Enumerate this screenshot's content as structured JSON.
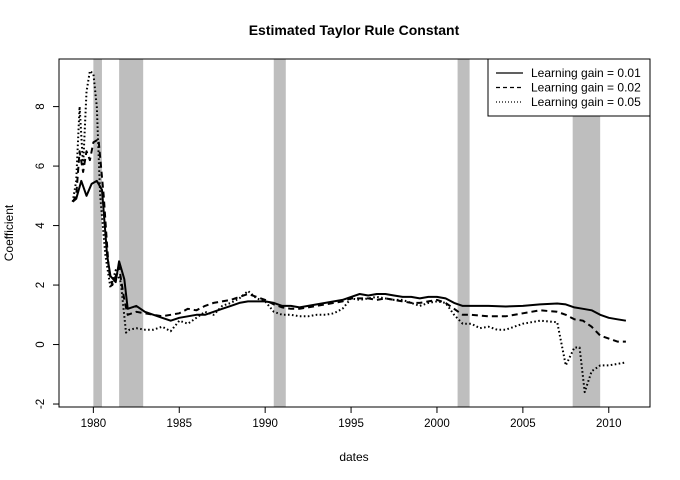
{
  "chart_data": {
    "type": "line",
    "title": "Estimated Taylor Rule Constant",
    "xlabel": "dates",
    "ylabel": "Coefficient",
    "xlim": [
      1978,
      2012.4
    ],
    "ylim": [
      -2.1,
      9.6
    ],
    "x_ticks": [
      1980,
      1985,
      1990,
      1995,
      2000,
      2005,
      2010
    ],
    "y_ticks": [
      -2,
      0,
      2,
      4,
      6,
      8
    ],
    "grid": false,
    "legend_position": "top-right",
    "shaded_periods": [
      [
        1980.0,
        1980.5
      ],
      [
        1981.5,
        1982.9
      ],
      [
        1990.5,
        1991.2
      ],
      [
        2001.2,
        2001.9
      ],
      [
        2007.9,
        2009.5
      ]
    ],
    "series": [
      {
        "name": "Learning gain = 0.01",
        "line_style": "solid",
        "x": [
          1978.8,
          1979.0,
          1979.3,
          1979.6,
          1979.9,
          1980.2,
          1980.5,
          1980.8,
          1981.0,
          1981.3,
          1981.5,
          1981.8,
          1982.0,
          1982.5,
          1983.0,
          1983.5,
          1984.0,
          1984.5,
          1985.0,
          1985.5,
          1986.0,
          1986.5,
          1987.0,
          1987.5,
          1988.0,
          1988.5,
          1989.0,
          1989.5,
          1990.0,
          1990.5,
          1991.0,
          1991.5,
          1992.0,
          1992.5,
          1993.0,
          1993.5,
          1994.0,
          1994.5,
          1995.0,
          1995.5,
          1996.0,
          1996.5,
          1997.0,
          1997.5,
          1998.0,
          1998.5,
          1999.0,
          1999.5,
          2000.0,
          2000.5,
          2001.0,
          2001.5,
          2002.0,
          2003.0,
          2004.0,
          2005.0,
          2006.0,
          2007.0,
          2007.5,
          2008.0,
          2008.5,
          2009.0,
          2009.5,
          2010.0,
          2010.5,
          2011.0
        ],
        "y": [
          4.8,
          4.9,
          5.5,
          5.0,
          5.4,
          5.5,
          5.2,
          3.0,
          2.3,
          2.1,
          2.8,
          2.2,
          1.2,
          1.3,
          1.1,
          1.0,
          0.9,
          0.8,
          0.9,
          0.95,
          1.0,
          1.0,
          1.1,
          1.2,
          1.3,
          1.4,
          1.45,
          1.45,
          1.45,
          1.4,
          1.3,
          1.3,
          1.25,
          1.3,
          1.35,
          1.4,
          1.45,
          1.5,
          1.6,
          1.7,
          1.65,
          1.7,
          1.7,
          1.65,
          1.6,
          1.6,
          1.55,
          1.6,
          1.6,
          1.55,
          1.4,
          1.3,
          1.3,
          1.3,
          1.28,
          1.3,
          1.35,
          1.38,
          1.35,
          1.25,
          1.2,
          1.15,
          1.0,
          0.9,
          0.85,
          0.8
        ]
      },
      {
        "name": "Learning gain = 0.02",
        "line_style": "dashed",
        "x": [
          1978.8,
          1979.0,
          1979.2,
          1979.4,
          1979.6,
          1979.8,
          1980.0,
          1980.3,
          1980.6,
          1980.9,
          1981.1,
          1981.3,
          1981.5,
          1981.8,
          1982.0,
          1982.5,
          1983.0,
          1983.5,
          1984.0,
          1984.5,
          1985.0,
          1985.5,
          1986.0,
          1986.5,
          1987.0,
          1987.5,
          1988.0,
          1988.5,
          1989.0,
          1989.5,
          1990.0,
          1990.5,
          1991.0,
          1991.5,
          1992.0,
          1992.5,
          1993.0,
          1993.5,
          1994.0,
          1994.5,
          1995.0,
          1995.5,
          1996.0,
          1996.5,
          1997.0,
          1997.5,
          1998.0,
          1998.5,
          1999.0,
          1999.5,
          2000.0,
          2000.5,
          2001.0,
          2001.5,
          2002.0,
          2003.0,
          2004.0,
          2005.0,
          2006.0,
          2007.0,
          2007.5,
          2008.0,
          2008.5,
          2009.0,
          2009.5,
          2010.0,
          2010.5,
          2011.0
        ],
        "y": [
          4.8,
          5.0,
          6.5,
          5.8,
          6.5,
          6.2,
          6.8,
          6.9,
          5.0,
          2.5,
          2.0,
          2.3,
          2.6,
          1.5,
          1.0,
          1.1,
          1.05,
          1.0,
          0.95,
          1.0,
          1.05,
          1.2,
          1.15,
          1.3,
          1.4,
          1.45,
          1.5,
          1.6,
          1.7,
          1.6,
          1.5,
          1.35,
          1.25,
          1.2,
          1.2,
          1.25,
          1.3,
          1.35,
          1.4,
          1.45,
          1.55,
          1.55,
          1.55,
          1.5,
          1.55,
          1.5,
          1.45,
          1.4,
          1.4,
          1.45,
          1.5,
          1.4,
          1.2,
          1.0,
          1.0,
          0.95,
          0.95,
          1.05,
          1.15,
          1.1,
          1.0,
          0.85,
          0.8,
          0.6,
          0.3,
          0.2,
          0.1,
          0.1
        ]
      },
      {
        "name": "Learning gain = 0.05",
        "line_style": "dotted",
        "x": [
          1978.8,
          1979.0,
          1979.2,
          1979.4,
          1979.6,
          1979.8,
          1980.0,
          1980.2,
          1980.4,
          1980.7,
          1981.0,
          1981.3,
          1981.6,
          1981.9,
          1982.1,
          1982.5,
          1983.0,
          1983.5,
          1984.0,
          1984.5,
          1985.0,
          1985.5,
          1986.0,
          1986.5,
          1987.0,
          1987.5,
          1988.0,
          1988.5,
          1989.0,
          1989.5,
          1990.0,
          1990.5,
          1991.0,
          1991.5,
          1992.0,
          1992.5,
          1993.0,
          1993.5,
          1994.0,
          1994.5,
          1995.0,
          1995.5,
          1996.0,
          1996.5,
          1997.0,
          1997.5,
          1998.0,
          1998.5,
          1999.0,
          1999.5,
          2000.0,
          2000.5,
          2001.0,
          2001.5,
          2002.0,
          2002.5,
          2003.0,
          2003.5,
          2004.0,
          2004.5,
          2005.0,
          2005.5,
          2006.0,
          2007.0,
          2007.5,
          2008.0,
          2008.3,
          2008.6,
          2009.0,
          2009.5,
          2010.0,
          2010.5,
          2011.0
        ],
        "y": [
          4.8,
          5.5,
          8.0,
          6.0,
          8.5,
          9.2,
          9.1,
          8.0,
          5.0,
          3.0,
          1.9,
          2.5,
          2.1,
          0.4,
          0.5,
          0.55,
          0.5,
          0.5,
          0.6,
          0.45,
          0.8,
          0.7,
          0.9,
          1.1,
          1.0,
          1.3,
          1.4,
          1.55,
          1.8,
          1.55,
          1.45,
          1.1,
          1.0,
          1.0,
          0.95,
          0.95,
          1.0,
          1.0,
          1.05,
          1.2,
          1.55,
          1.5,
          1.55,
          1.6,
          1.55,
          1.5,
          1.5,
          1.4,
          1.3,
          1.4,
          1.45,
          1.4,
          1.0,
          0.7,
          0.7,
          0.55,
          0.6,
          0.5,
          0.5,
          0.6,
          0.7,
          0.75,
          0.8,
          0.75,
          -0.7,
          -0.1,
          -0.1,
          -1.6,
          -0.9,
          -0.7,
          -0.7,
          -0.65,
          -0.6
        ]
      }
    ]
  }
}
